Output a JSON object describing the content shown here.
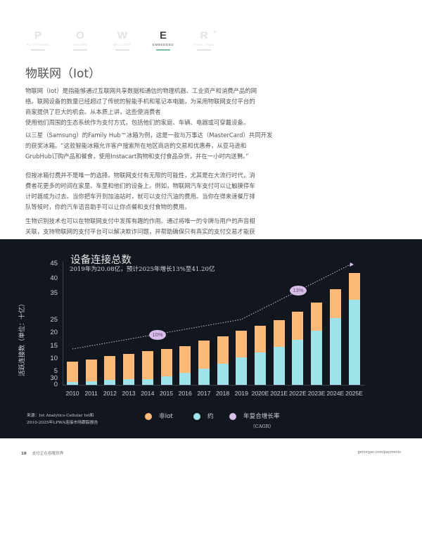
{
  "nav": {
    "items": [
      {
        "letter": "P",
        "label": "PLATFORMS",
        "active": false
      },
      {
        "letter": "O",
        "label": "ONLINE",
        "active": false
      },
      {
        "letter": "W",
        "label": "WALLETS",
        "active": false
      },
      {
        "letter": "E",
        "label": "EMBEDDED",
        "active": true
      },
      {
        "letter": "R",
        "label": "REAL TIME",
        "active": false
      }
    ],
    "plus": "+"
  },
  "page_title": "物联网（Iot）",
  "paragraphs": [
    {
      "lines": [
        "物联网（Iot）是指能够通过互联网共享数据和通信的物理机器、工业资产和消费产品的网",
        "络。联网设备的数量已经超过了传统的智能手机和笔记本电脑，为采用物联网支付平台的",
        "商家提供了巨大的机会。从本质上讲，这些使消费者",
        "使用他们周围的生态系统作为支付方式，包括他们的家庭、车辆、电器或可穿戴设备。"
      ]
    },
    {
      "lines": [
        "以三星（Samsung）的Family Hub™冰箱为例，这是一款与万事达（MasterCard）共同开发",
        "的获奖冰箱。“这款智能冰箱允许客户搜索所在地区商店的交易和优惠券，从亚马逊和",
        "GrubHub订购产品和餐食，使用Instacart购物和支付食品杂货，并在一小时内送到。”"
      ],
      "footnote": "42"
    },
    {
      "lines": [
        "但按冰箱付费并不是唯一的选择。物联网支付有无限的可能性，尤其是在大流行时代，消",
        "费者花更多的时间在家里、车里和他们的设备上。例如，物联网汽车支付可以让触摸停车",
        "计时器成为过去。当你把车开到加油站时，就可以支付汽油的费用。当你在得来速餐厅排",
        "队等候时，你的汽车语音助手可以让你点餐和支付食物的费用。"
      ]
    },
    {
      "lines": [
        "生物识别技术也可以在物联网支付中发挥有趣的作用。通过将唯一的令牌与用户的声音相",
        "关联，支持物联网的支付平台可以解决欺诈问题，并帮助确保只有真实的支付交易才能获"
      ]
    }
  ],
  "chart_data": {
    "type": "bar",
    "stacked": true,
    "title": "设备连接总数",
    "subtitle": "2019年为20.08亿，预计2025年增长13%至41.20亿",
    "ylabel": "活跃连接数（单位：十亿）",
    "xlabel": "",
    "yticks": [
      "45",
      "40",
      "35",
      "25",
      "20",
      "15",
      "10",
      "5",
      "30",
      "0"
    ],
    "ylim": [
      0,
      45
    ],
    "categories": [
      "2010",
      "2011",
      "2012",
      "2013",
      "2014",
      "2015",
      "2016",
      "2017",
      "2018",
      "2019",
      "2020E",
      "2021E",
      "2022E",
      "2023E",
      "2024E",
      "2025E"
    ],
    "series": [
      {
        "name": "约",
        "color": "#9de3e9",
        "values": [
          1.0,
          1.2,
          1.7,
          2.0,
          2.0,
          3.1,
          4.5,
          6.0,
          7.8,
          10.0,
          12.0,
          14.0,
          16.5,
          20.0,
          24.7,
          31.4
        ]
      },
      {
        "name": "非Iot",
        "color": "#fdb978",
        "values": [
          7.6,
          8.2,
          9.0,
          9.5,
          10.4,
          10.2,
          9.8,
          10.3,
          10.0,
          10.1,
          9.7,
          10.0,
          10.4,
          10.5,
          10.6,
          9.8
        ]
      }
    ],
    "totals": [
      8.6,
      9.4,
      10.7,
      11.5,
      12.4,
      13.3,
      14.3,
      16.3,
      17.8,
      20.1,
      21.7,
      24.0,
      26.9,
      30.5,
      35.3,
      41.2
    ],
    "cagr_line": {
      "name": "年复合增长率（CAGR）",
      "color": "#d8bfe8",
      "labels": [
        {
          "text": "10%",
          "segment": "2010-2019"
        },
        {
          "text": "13%",
          "segment": "2019-2025E"
        }
      ]
    },
    "legend": [
      {
        "label": "非Iot",
        "color": "#fdb978"
      },
      {
        "label": "约",
        "color": "#9de3e9"
      },
      {
        "label": "年复合增长率",
        "sub": "（CAGR）",
        "color": "#d8bfe8"
      }
    ],
    "source_lines": [
      "来源：Iot Analytics-Cellular Iot和",
      "2010-2025年LPWA连接市场跟踪报告"
    ],
    "grid": false,
    "legend_position": "bottom"
  },
  "footer": {
    "page_number": "18",
    "section": "支付正在吞噬世界",
    "url": "jpmorgan.com/payments"
  }
}
